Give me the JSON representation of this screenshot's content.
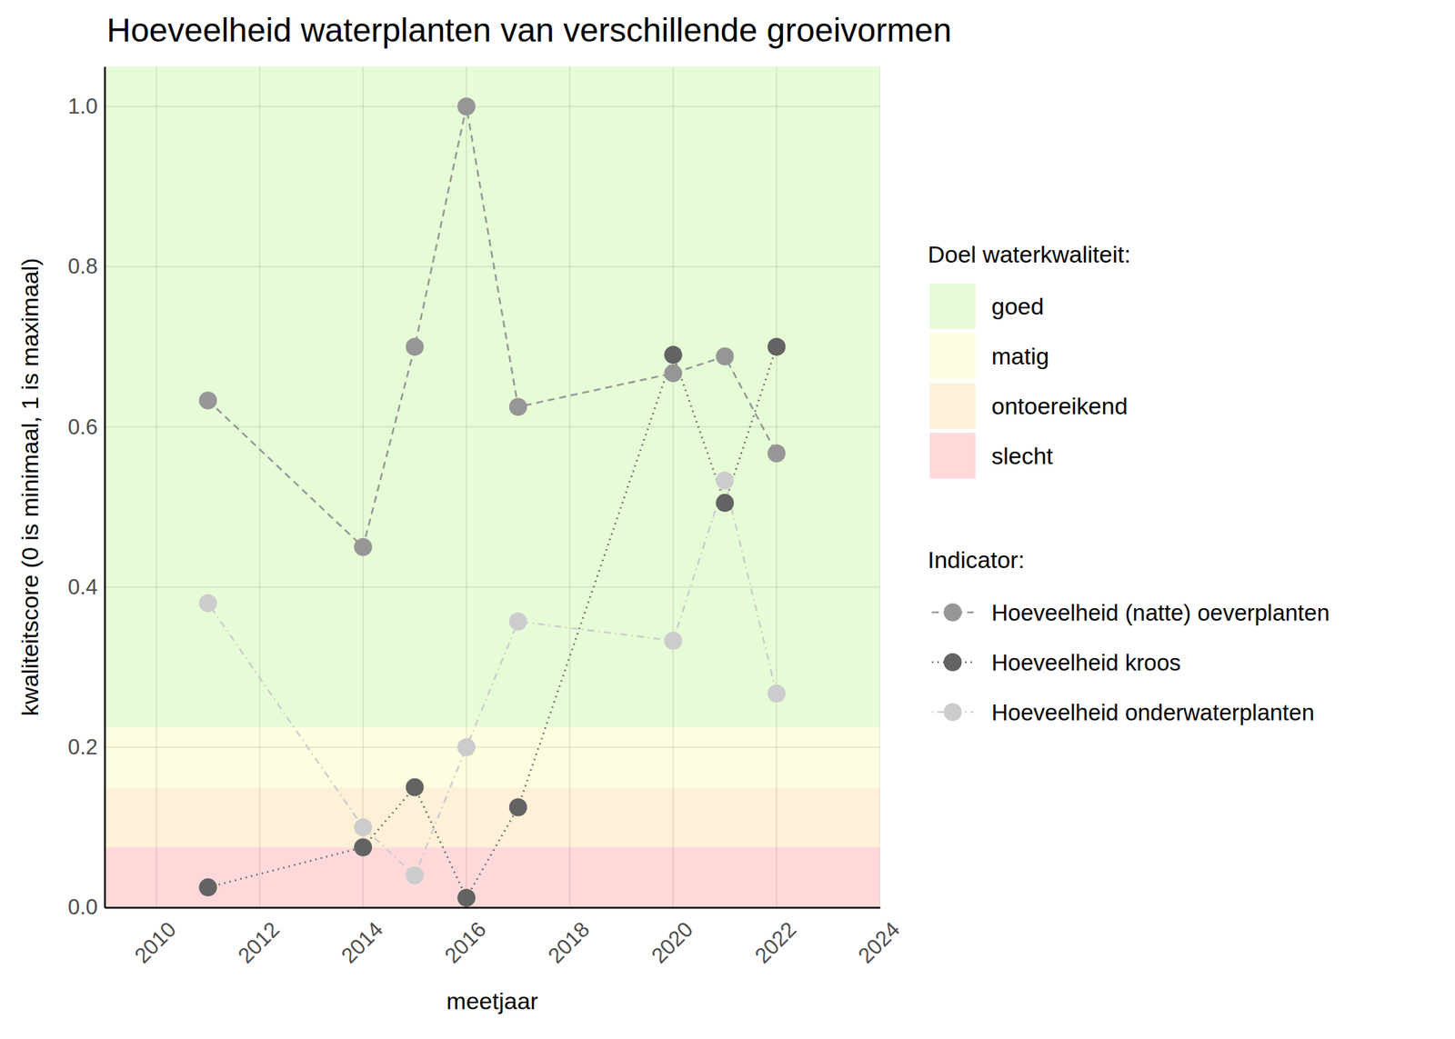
{
  "chart_data": {
    "type": "line",
    "title": "Hoeveelheid waterplanten van verschillende groeivormen",
    "x_label": "meetjaar",
    "y_label": "kwaliteitscore (0 is minimaal, 1 is maximaal)",
    "x": [
      2011,
      2014,
      2015,
      2016,
      2017,
      2020,
      2021,
      2022
    ],
    "xlim": [
      2009,
      2024
    ],
    "xticks": [
      2010,
      2012,
      2014,
      2016,
      2018,
      2020,
      2022,
      2024
    ],
    "ylim": [
      0,
      1.05
    ],
    "yticks": [
      {
        "value": 0,
        "label": "0.0"
      },
      0.2,
      0.4,
      0.6,
      0.8,
      {
        "value": 1,
        "label": "1.0"
      }
    ],
    "grid": true,
    "legend": "right",
    "bands_title": "Doel waterkwaliteit:",
    "bands": [
      {
        "name": "goed",
        "color": "#e6fcd6",
        "from": 0.225,
        "to": 1.05
      },
      {
        "name": "matig",
        "color": "#fffde0",
        "from": 0.15,
        "to": 0.225
      },
      {
        "name": "ontoereikend",
        "color": "#fff0d8",
        "from": 0.075,
        "to": 0.15
      },
      {
        "name": "slecht",
        "color": "#ffd9da",
        "from": 0,
        "to": 0.075
      }
    ],
    "series_title": "Indicator:",
    "series": [
      {
        "name": "Hoeveelheid (natte) oeverplanten",
        "color": "#969696",
        "marker": "circle",
        "line_style": "dashed",
        "values": [
          0.633,
          0.45,
          0.7,
          1.0,
          0.625,
          0.667,
          0.688,
          0.567
        ]
      },
      {
        "name": "Hoeveelheid kroos",
        "color": "#636363",
        "marker": "circle",
        "line_style": "dotted",
        "values": [
          0.025,
          0.075,
          0.15,
          0.012,
          0.125,
          0.69,
          0.505,
          0.7
        ]
      },
      {
        "name": "Hoeveelheid onderwaterplanten",
        "color": "#cccccc",
        "marker": "circle",
        "line_style": "dotdash",
        "values": [
          0.38,
          0.1,
          0.04,
          0.2,
          0.357,
          0.333,
          0.533,
          0.267
        ]
      }
    ]
  }
}
